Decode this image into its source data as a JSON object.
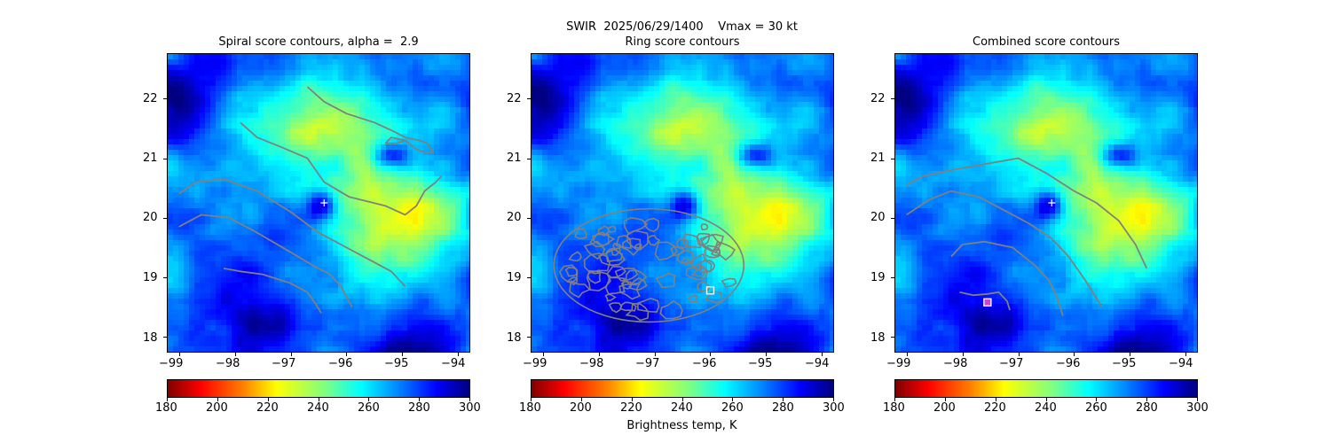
{
  "figure": {
    "suptitle": "SWIR  2025/06/29/1400    Vmax = 30 kt",
    "colorbar_label": "Brightness temp, K"
  },
  "colorbar": {
    "ticks": [
      "180",
      "200",
      "220",
      "240",
      "260",
      "280",
      "300"
    ],
    "range": [
      180,
      300
    ],
    "colormap": "jet_r",
    "colors": [
      "#800000",
      "#ff0000",
      "#ff8000",
      "#ffff00",
      "#80ff80",
      "#00ffff",
      "#0080ff",
      "#0000ff",
      "#000080"
    ]
  },
  "panels": [
    {
      "title": "Spiral score contours, alpha =  2.9"
    },
    {
      "title": "Ring score contours"
    },
    {
      "title": "Combined score contours"
    }
  ],
  "axes": {
    "x_ticks": [
      "−99",
      "−98",
      "−97",
      "−96",
      "−95",
      "−94"
    ],
    "y_ticks": [
      "18",
      "19",
      "20",
      "21",
      "22"
    ]
  },
  "chart_data": [
    {
      "type": "heatmap",
      "title": "Spiral score contours, alpha =  2.9",
      "xlim": [
        -99.2,
        -93.8
      ],
      "ylim": [
        17.75,
        22.75
      ],
      "x_ticks": [
        -99,
        -98,
        -97,
        -96,
        -95,
        -94
      ],
      "y_ticks": [
        18,
        19,
        20,
        21,
        22
      ],
      "colorbar": {
        "range": [
          180,
          300
        ],
        "ticks": [
          180,
          200,
          220,
          240,
          260,
          280,
          300
        ]
      },
      "contour_color": "#808080",
      "contours": [
        [
          [
            -96.7,
            22.2
          ],
          [
            -96.4,
            21.95
          ],
          [
            -96.0,
            21.75
          ],
          [
            -95.5,
            21.6
          ],
          [
            -95.15,
            21.45
          ],
          [
            -94.95,
            21.35
          ],
          [
            -94.7,
            21.3
          ],
          [
            -94.55,
            21.25
          ],
          [
            -94.45,
            21.1
          ],
          [
            -94.6,
            21.1
          ],
          [
            -94.75,
            21.15
          ],
          [
            -94.95,
            21.3
          ],
          [
            -95.2,
            21.35
          ],
          [
            -95.3,
            21.25
          ],
          [
            -95.1,
            21.25
          ],
          [
            -94.95,
            21.3
          ]
        ],
        [
          [
            -97.9,
            21.6
          ],
          [
            -97.6,
            21.35
          ],
          [
            -97.2,
            21.2
          ],
          [
            -96.7,
            21.0
          ],
          [
            -96.4,
            20.6
          ],
          [
            -95.95,
            20.35
          ],
          [
            -95.3,
            20.2
          ],
          [
            -94.95,
            20.05
          ],
          [
            -94.75,
            20.2
          ],
          [
            -94.6,
            20.45
          ],
          [
            -94.4,
            20.6
          ],
          [
            -94.3,
            20.7
          ]
        ],
        [
          [
            -99.0,
            20.4
          ],
          [
            -98.7,
            20.6
          ],
          [
            -98.2,
            20.65
          ],
          [
            -97.6,
            20.45
          ],
          [
            -97.0,
            20.1
          ],
          [
            -96.5,
            19.75
          ],
          [
            -96.1,
            19.55
          ],
          [
            -95.6,
            19.3
          ],
          [
            -95.2,
            19.1
          ],
          [
            -94.95,
            18.85
          ]
        ],
        [
          [
            -99.0,
            19.85
          ],
          [
            -98.6,
            20.05
          ],
          [
            -98.1,
            20.0
          ],
          [
            -97.6,
            19.75
          ],
          [
            -97.05,
            19.45
          ],
          [
            -96.6,
            19.2
          ],
          [
            -96.3,
            19.05
          ],
          [
            -96.1,
            18.85
          ],
          [
            -95.9,
            18.5
          ]
        ],
        [
          [
            -98.2,
            19.15
          ],
          [
            -97.9,
            19.1
          ],
          [
            -97.5,
            19.05
          ],
          [
            -97.0,
            18.9
          ],
          [
            -96.7,
            18.75
          ],
          [
            -96.55,
            18.55
          ],
          [
            -96.45,
            18.4
          ]
        ]
      ],
      "markers": [
        {
          "x": -96.4,
          "y": 20.25,
          "shape": "plus",
          "color": "#ffffff"
        }
      ]
    },
    {
      "type": "heatmap",
      "title": "Ring score contours",
      "xlim": [
        -99.2,
        -93.8
      ],
      "ylim": [
        17.75,
        22.75
      ],
      "x_ticks": [
        -99,
        -98,
        -97,
        -96,
        -95,
        -94
      ],
      "y_ticks": [
        18,
        19,
        20,
        21,
        22
      ],
      "colorbar": {
        "range": [
          180,
          300
        ],
        "ticks": [
          180,
          200,
          220,
          240,
          260,
          280,
          300
        ]
      },
      "contour_color": "#808080",
      "contour_region": {
        "center": [
          -97.1,
          19.2
        ],
        "radius_x": 1.7,
        "radius_y": 0.95
      },
      "markers": [
        {
          "x": -96.0,
          "y": 18.78,
          "shape": "square",
          "color": "#ffffff"
        }
      ]
    },
    {
      "type": "heatmap",
      "title": "Combined score contours",
      "xlim": [
        -99.2,
        -93.8
      ],
      "ylim": [
        17.75,
        22.75
      ],
      "x_ticks": [
        -99,
        -98,
        -97,
        -96,
        -95,
        -94
      ],
      "y_ticks": [
        18,
        19,
        20,
        21,
        22
      ],
      "colorbar": {
        "range": [
          180,
          300
        ],
        "ticks": [
          180,
          200,
          220,
          240,
          260,
          280,
          300
        ]
      },
      "contour_color": "#808080",
      "contours": [
        [
          [
            -99.0,
            20.55
          ],
          [
            -98.7,
            20.7
          ],
          [
            -98.2,
            20.8
          ],
          [
            -97.6,
            20.9
          ],
          [
            -97.0,
            21.0
          ],
          [
            -96.5,
            20.75
          ],
          [
            -96.0,
            20.45
          ],
          [
            -95.6,
            20.25
          ],
          [
            -95.2,
            19.95
          ],
          [
            -94.9,
            19.55
          ],
          [
            -94.7,
            19.15
          ]
        ],
        [
          [
            -99.0,
            20.05
          ],
          [
            -98.6,
            20.3
          ],
          [
            -98.2,
            20.45
          ],
          [
            -97.7,
            20.35
          ],
          [
            -97.2,
            20.1
          ],
          [
            -96.8,
            19.9
          ],
          [
            -96.4,
            19.65
          ],
          [
            -96.1,
            19.35
          ],
          [
            -95.8,
            18.95
          ],
          [
            -95.5,
            18.5
          ]
        ],
        [
          [
            -98.2,
            19.35
          ],
          [
            -98.0,
            19.55
          ],
          [
            -97.6,
            19.6
          ],
          [
            -97.1,
            19.5
          ],
          [
            -96.7,
            19.2
          ],
          [
            -96.45,
            18.95
          ],
          [
            -96.3,
            18.65
          ],
          [
            -96.2,
            18.35
          ]
        ],
        [
          [
            -98.05,
            18.75
          ],
          [
            -97.8,
            18.7
          ],
          [
            -97.55,
            18.72
          ],
          [
            -97.35,
            18.75
          ],
          [
            -97.2,
            18.6
          ],
          [
            -97.15,
            18.45
          ]
        ]
      ],
      "markers": [
        {
          "x": -96.4,
          "y": 20.25,
          "shape": "plus",
          "color": "#ffffff"
        },
        {
          "x": -97.55,
          "y": 18.58,
          "shape": "square",
          "color": "#ffffff",
          "fill": "#cc44cc"
        }
      ]
    }
  ]
}
